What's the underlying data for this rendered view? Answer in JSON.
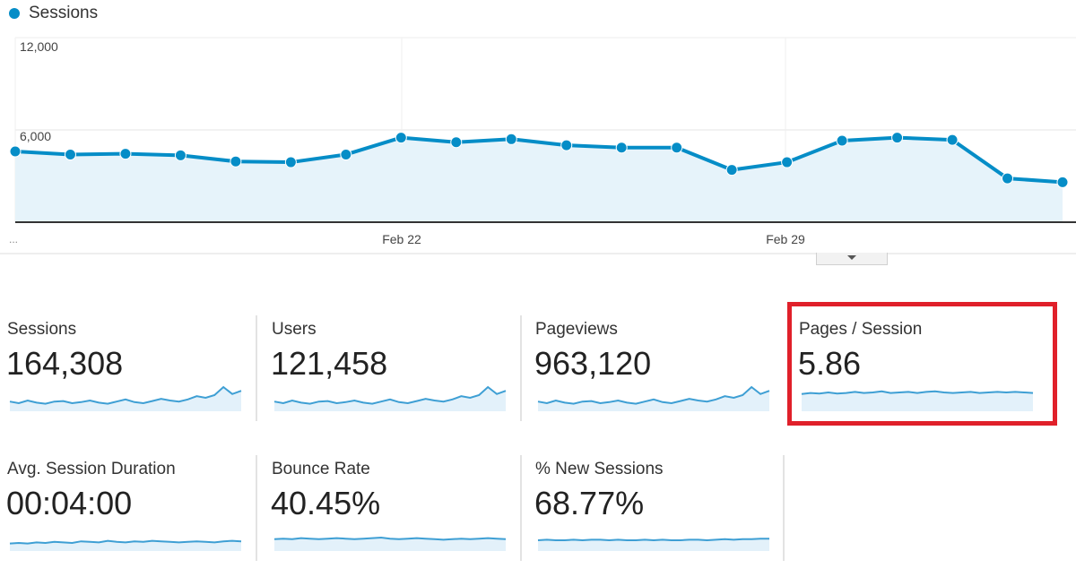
{
  "legend": {
    "series_name": "Sessions",
    "color": "#058dc7"
  },
  "chart_data": {
    "type": "area",
    "x_ticks": [
      "Feb 22",
      "Feb 29"
    ],
    "ylim": [
      0,
      12000
    ],
    "y_ticks": [
      "12,000",
      "6,000"
    ],
    "grid": true,
    "values": [
      4600,
      4400,
      4450,
      4350,
      3950,
      3900,
      4400,
      5500,
      5200,
      5400,
      5000,
      4850,
      4850,
      3400,
      3900,
      5300,
      5500,
      5350,
      2850,
      2600
    ],
    "color": "#058dc7",
    "fill": "#e6f3fa"
  },
  "axis_ellipsis": "...",
  "metrics": [
    {
      "label": "Sessions",
      "value": "164,308",
      "spark": [
        48,
        45,
        50,
        46,
        44,
        48,
        49,
        45,
        47,
        50,
        46,
        44,
        48,
        52,
        47,
        45,
        49,
        53,
        50,
        48,
        52,
        58,
        55,
        60,
        75,
        62,
        68
      ],
      "highlight": false
    },
    {
      "label": "Users",
      "value": "121,458",
      "spark": [
        48,
        45,
        50,
        46,
        44,
        48,
        49,
        45,
        47,
        50,
        46,
        44,
        48,
        52,
        47,
        45,
        49,
        53,
        50,
        48,
        52,
        58,
        55,
        60,
        75,
        62,
        68
      ],
      "highlight": false
    },
    {
      "label": "Pageviews",
      "value": "963,120",
      "spark": [
        48,
        45,
        50,
        46,
        44,
        48,
        49,
        45,
        47,
        50,
        46,
        44,
        48,
        52,
        47,
        45,
        49,
        53,
        50,
        48,
        52,
        58,
        55,
        60,
        75,
        62,
        68
      ],
      "highlight": false
    },
    {
      "label": "Pages / Session",
      "value": "5.86",
      "spark": [
        62,
        64,
        63,
        65,
        63,
        64,
        66,
        64,
        65,
        67,
        64,
        65,
        66,
        64,
        66,
        67,
        65,
        64,
        65,
        66,
        64,
        65,
        66,
        65,
        66,
        65,
        64
      ],
      "highlight": true
    },
    {
      "label": "Avg. Session Duration",
      "value": "00:04:00",
      "spark": [
        44,
        45,
        44,
        46,
        45,
        47,
        46,
        45,
        48,
        47,
        46,
        49,
        47,
        46,
        48,
        47,
        49,
        48,
        47,
        46,
        47,
        48,
        47,
        46,
        48,
        49,
        48
      ],
      "highlight": false
    },
    {
      "label": "Bounce Rate",
      "value": "40.45%",
      "spark": [
        52,
        53,
        52,
        54,
        53,
        52,
        53,
        54,
        53,
        52,
        53,
        54,
        55,
        53,
        52,
        53,
        54,
        53,
        52,
        51,
        52,
        53,
        52,
        53,
        54,
        53,
        52
      ],
      "highlight": false
    },
    {
      "label": "% New Sessions",
      "value": "68.77%",
      "spark": [
        50,
        51,
        50,
        50,
        51,
        50,
        51,
        51,
        50,
        51,
        50,
        50,
        51,
        50,
        51,
        50,
        50,
        51,
        51,
        50,
        51,
        52,
        51,
        52,
        52,
        53,
        53
      ],
      "highlight": false
    }
  ]
}
